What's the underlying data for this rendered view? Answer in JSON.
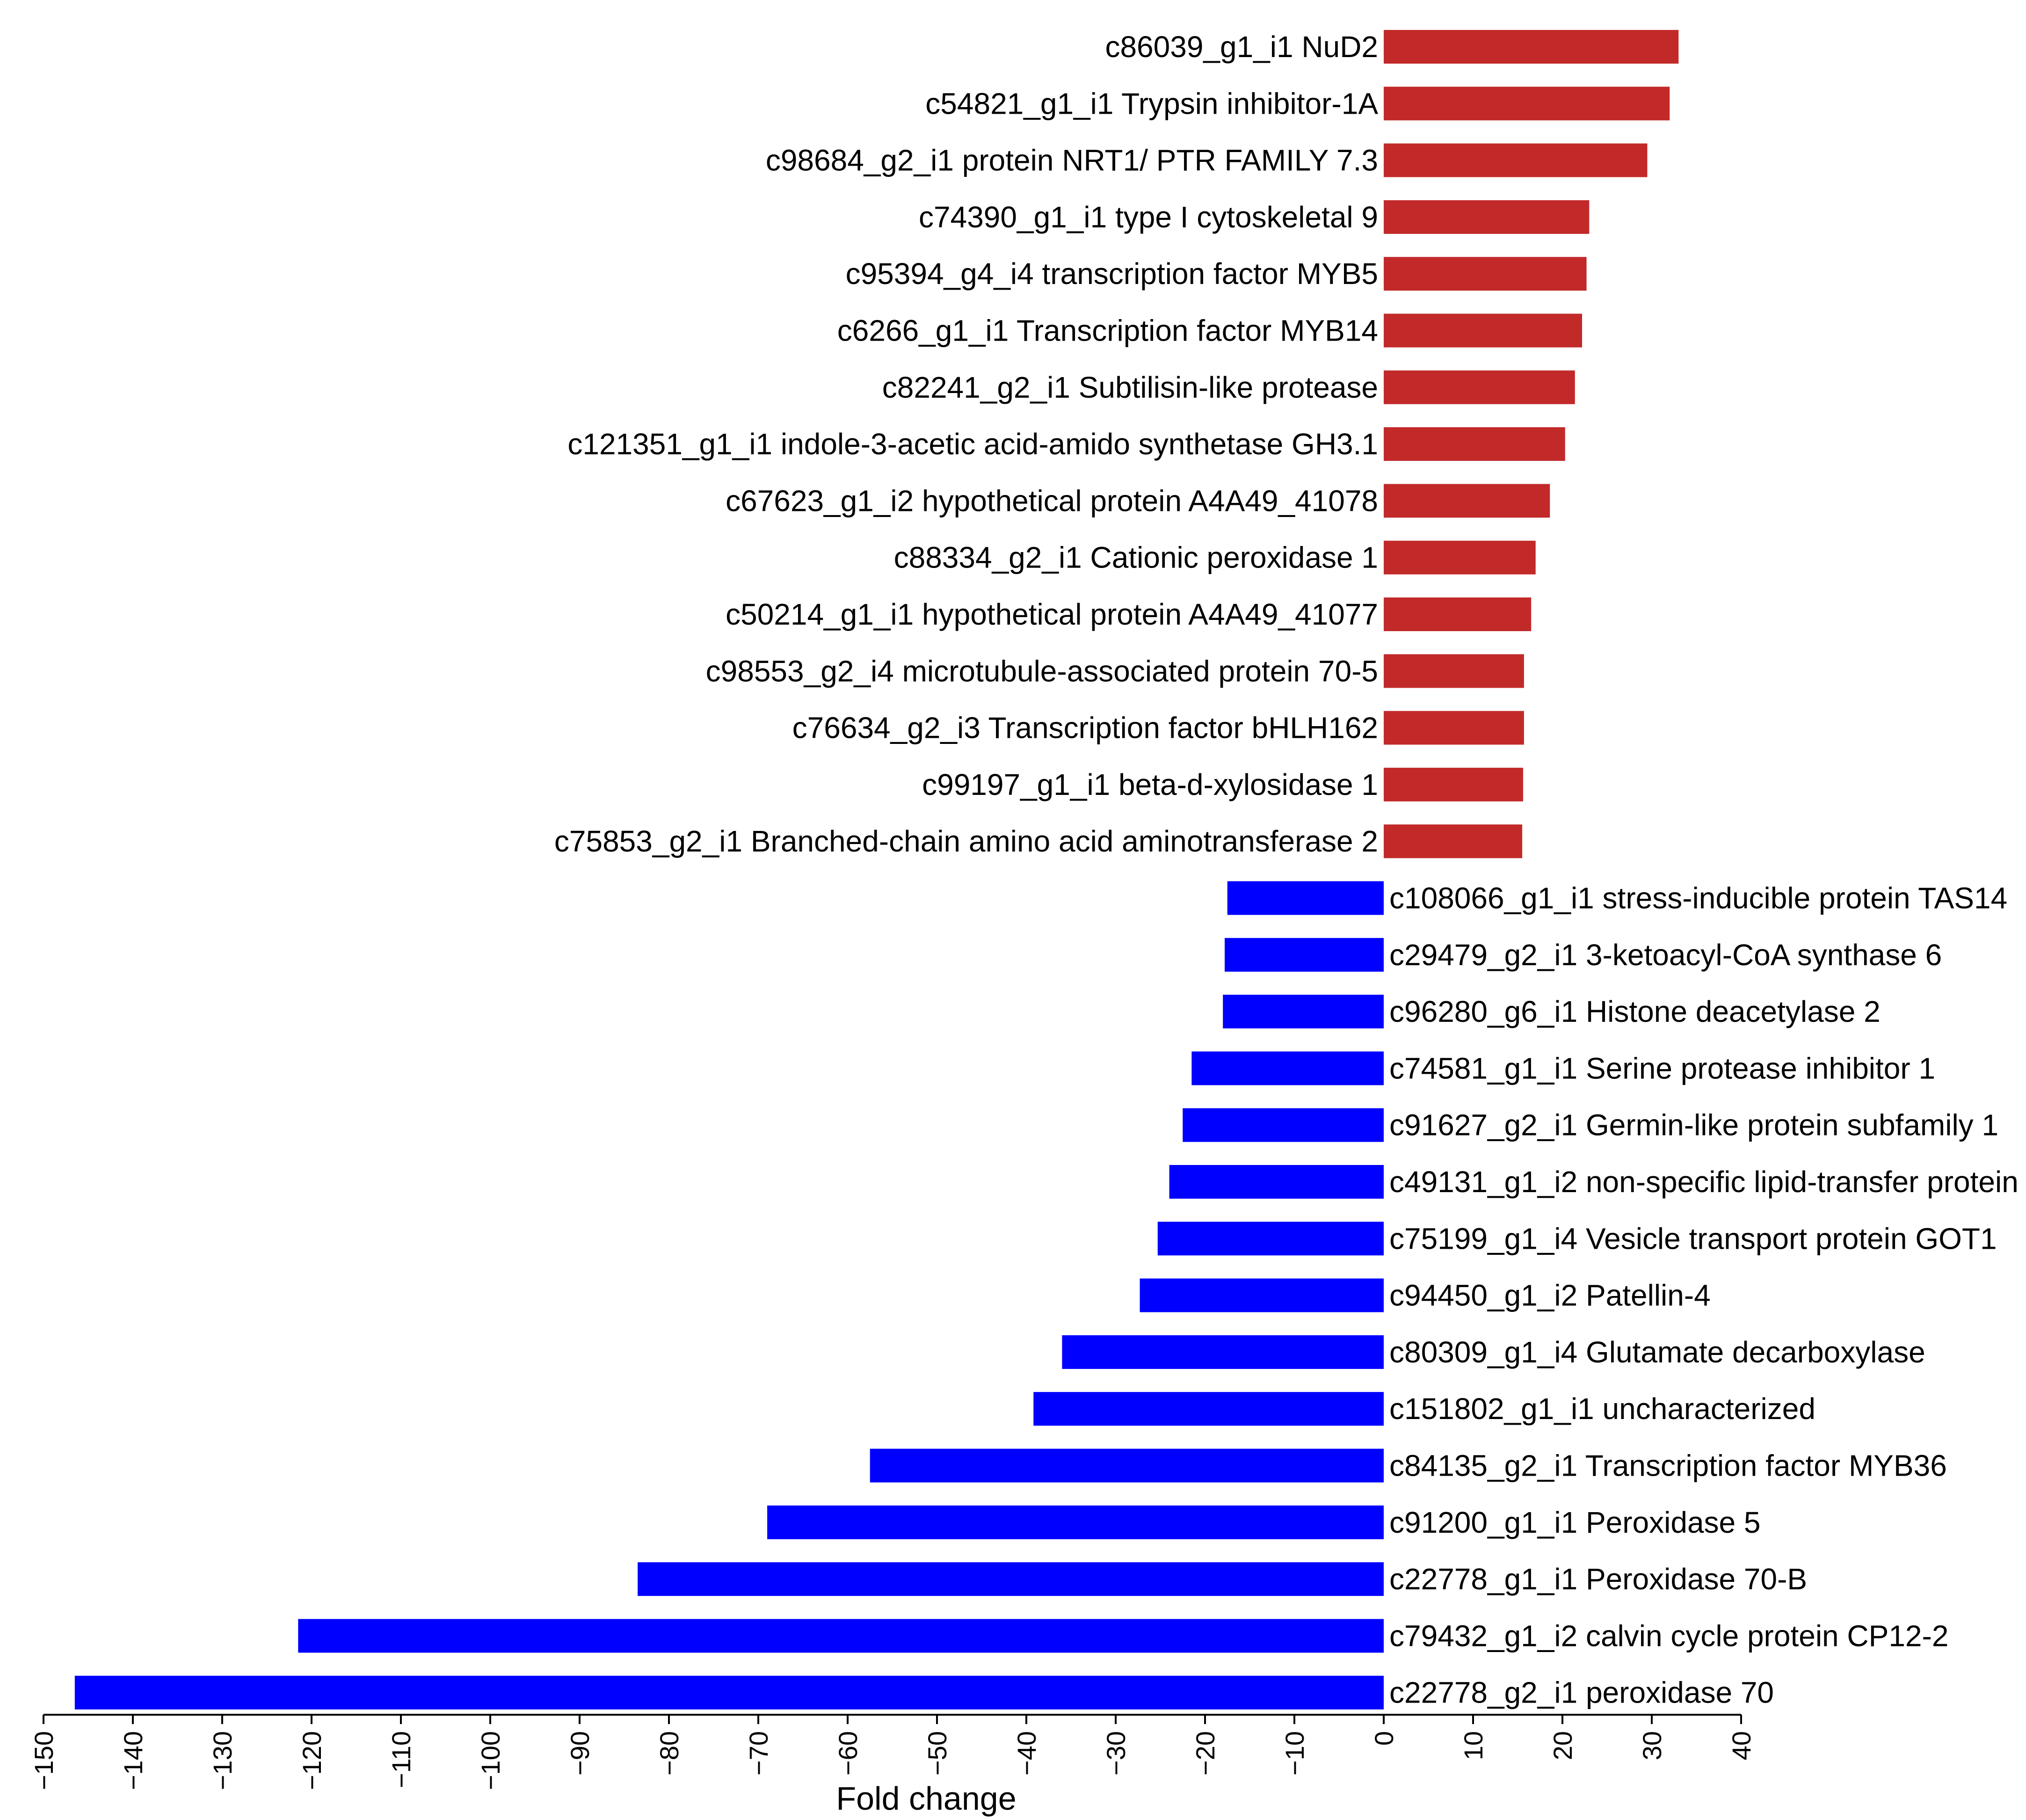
{
  "chart_data": {
    "type": "bar",
    "orientation": "horizontal",
    "title": "",
    "xlabel": "Fold change",
    "ylabel": "",
    "xlim": [
      -150,
      40
    ],
    "xticks": [
      -150,
      -140,
      -130,
      -120,
      -110,
      -100,
      -90,
      -80,
      -70,
      -60,
      -50,
      -40,
      -30,
      -20,
      -10,
      0,
      10,
      20,
      30,
      40
    ],
    "grid": false,
    "colors": {
      "up": "#c22a2a",
      "down": "#0000ff"
    },
    "categories": [
      "c86039_g1_i1 NuD2",
      "c54821_g1_i1 Trypsin inhibitor-1A",
      "c98684_g2_i1 protein NRT1/ PTR FAMILY 7.3",
      "c74390_g1_i1 type I cytoskeletal 9",
      "c95394_g4_i4 transcription factor MYB5",
      "c6266_g1_i1 Transcription factor MYB14",
      "c82241_g2_i1 Subtilisin-like protease",
      "c121351_g1_i1 indole-3-acetic acid-amido synthetase GH3.1",
      "c67623_g1_i2 hypothetical protein A4A49_41078",
      "c88334_g2_i1 Cationic peroxidase 1",
      "c50214_g1_i1 hypothetical protein A4A49_41077",
      "c98553_g2_i4 microtubule-associated protein 70-5",
      "c76634_g2_i3 Transcription factor bHLH162",
      "c99197_g1_i1 beta-d-xylosidase 1",
      "c75853_g2_i1 Branched-chain amino acid aminotransferase 2",
      "c108066_g1_i1 stress-inducible protein TAS14",
      "c29479_g2_i1 3-ketoacyl-CoA synthase 6",
      "c96280_g6_i1 Histone deacetylase 2",
      "c74581_g1_i1 Serine protease inhibitor 1",
      "c91627_g2_i1 Germin-like protein subfamily 1",
      "c49131_g1_i2 non-specific lipid-transfer protein",
      "c75199_g1_i4 Vesicle transport protein GOT1",
      "c94450_g1_i2 Patellin-4",
      "c80309_g1_i4 Glutamate decarboxylase",
      "c151802_g1_i1 uncharacterized",
      "c84135_g2_i1 Transcription factor MYB36",
      "c91200_g1_i1 Peroxidase 5",
      "c22778_g1_i1 Peroxidase 70-B",
      "c79432_g1_i2 calvin cycle protein CP12-2",
      "c22778_g2_i1 peroxidase 70"
    ],
    "values": [
      33,
      32,
      29.5,
      23,
      22.7,
      22.2,
      21.4,
      20.3,
      18.6,
      17,
      16.5,
      15.7,
      15.7,
      15.6,
      15.5,
      -17.5,
      -17.8,
      -18,
      -21.5,
      -22.5,
      -24,
      -25.3,
      -27.3,
      -36,
      -39.2,
      -57.5,
      -69,
      -83.5,
      -121.5,
      -146.5
    ]
  }
}
